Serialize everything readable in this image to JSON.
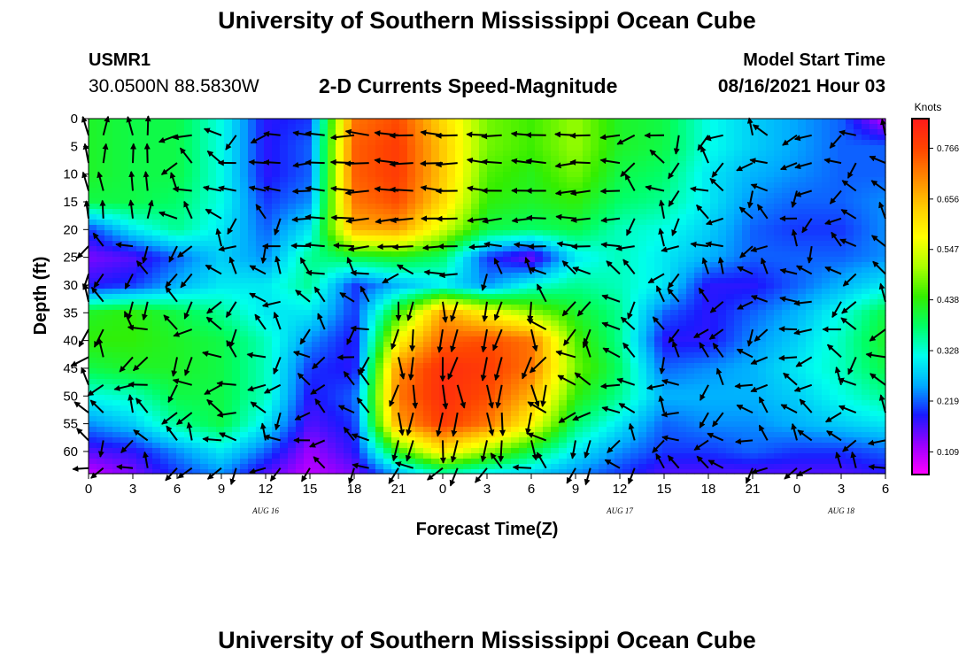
{
  "header": {
    "title": "University of Southern Mississippi Ocean Cube",
    "station_id": "USMR1",
    "station_coords": "30.0500N  88.5830W",
    "subtitle": "2-D Currents Speed-Magnitude",
    "model_start_label": "Model Start Time",
    "model_start_value": "08/16/2021 Hour 03"
  },
  "footer": {
    "title": "University of Southern Mississippi Ocean Cube"
  },
  "chart_data": {
    "type": "heatmap",
    "title": "2-D Currents Speed-Magnitude",
    "xlabel": "Forecast Time(Z)",
    "ylabel": "Depth (ft)",
    "x_tick_labels": [
      "0",
      "3",
      "6",
      "9",
      "12",
      "15",
      "18",
      "21",
      "0",
      "3",
      "6",
      "9",
      "12",
      "15",
      "18",
      "21",
      "0",
      "3",
      "6"
    ],
    "x_date_labels": [
      {
        "label": "AUG 16",
        "at_tick": 4
      },
      {
        "label": "AUG 17",
        "at_tick": 12
      },
      {
        "label": "AUG 18",
        "at_tick": 17
      }
    ],
    "y_ticks": [
      0,
      5,
      10,
      15,
      20,
      25,
      30,
      35,
      40,
      45,
      50,
      55,
      60
    ],
    "ylim": [
      0,
      64
    ],
    "y_reversed": true,
    "colorbar": {
      "unit": "Knots",
      "ticks": [
        0.109,
        0.219,
        0.328,
        0.438,
        0.547,
        0.656,
        0.766
      ],
      "range": [
        0.06,
        0.83
      ],
      "colors": [
        "#ff00ff",
        "#9900ff",
        "#1a1aff",
        "#00aaff",
        "#00ffee",
        "#00ff66",
        "#33ee00",
        "#aaff00",
        "#ffff00",
        "#ffcc00",
        "#ff8800",
        "#ff4400",
        "#ff1a1a"
      ]
    },
    "speed_grid_depths": [
      0,
      5,
      10,
      15,
      20,
      25,
      30,
      35,
      40,
      45,
      50,
      55,
      60,
      64
    ],
    "speed_grid": [
      [
        0.42,
        0.4,
        0.4,
        0.32,
        0.18,
        0.2,
        0.72,
        0.76,
        0.62,
        0.48,
        0.45,
        0.5,
        0.42,
        0.4,
        0.32,
        0.28,
        0.25,
        0.22,
        0.1
      ],
      [
        0.42,
        0.4,
        0.4,
        0.32,
        0.18,
        0.22,
        0.74,
        0.78,
        0.64,
        0.48,
        0.45,
        0.5,
        0.42,
        0.4,
        0.32,
        0.28,
        0.25,
        0.22,
        0.22
      ],
      [
        0.42,
        0.4,
        0.4,
        0.32,
        0.18,
        0.22,
        0.74,
        0.78,
        0.64,
        0.46,
        0.43,
        0.48,
        0.4,
        0.38,
        0.3,
        0.26,
        0.24,
        0.22,
        0.22
      ],
      [
        0.4,
        0.4,
        0.38,
        0.32,
        0.2,
        0.24,
        0.72,
        0.76,
        0.62,
        0.44,
        0.42,
        0.44,
        0.38,
        0.36,
        0.3,
        0.24,
        0.22,
        0.22,
        0.24
      ],
      [
        0.2,
        0.3,
        0.36,
        0.3,
        0.22,
        0.3,
        0.66,
        0.68,
        0.54,
        0.4,
        0.38,
        0.4,
        0.34,
        0.32,
        0.28,
        0.22,
        0.2,
        0.2,
        0.24
      ],
      [
        0.14,
        0.16,
        0.22,
        0.28,
        0.24,
        0.36,
        0.4,
        0.42,
        0.38,
        0.2,
        0.14,
        0.3,
        0.34,
        0.3,
        0.26,
        0.22,
        0.22,
        0.22,
        0.24
      ],
      [
        0.18,
        0.2,
        0.26,
        0.3,
        0.3,
        0.36,
        0.2,
        0.26,
        0.3,
        0.24,
        0.32,
        0.36,
        0.34,
        0.3,
        0.18,
        0.18,
        0.22,
        0.26,
        0.3
      ],
      [
        0.42,
        0.44,
        0.4,
        0.36,
        0.3,
        0.3,
        0.2,
        0.44,
        0.68,
        0.58,
        0.5,
        0.42,
        0.36,
        0.22,
        0.18,
        0.22,
        0.26,
        0.32,
        0.4
      ],
      [
        0.44,
        0.44,
        0.42,
        0.4,
        0.34,
        0.24,
        0.18,
        0.58,
        0.74,
        0.76,
        0.72,
        0.46,
        0.36,
        0.18,
        0.18,
        0.24,
        0.28,
        0.34,
        0.42
      ],
      [
        0.4,
        0.42,
        0.42,
        0.4,
        0.34,
        0.2,
        0.18,
        0.7,
        0.8,
        0.78,
        0.72,
        0.48,
        0.38,
        0.22,
        0.24,
        0.26,
        0.3,
        0.34,
        0.4
      ],
      [
        0.32,
        0.34,
        0.4,
        0.4,
        0.34,
        0.18,
        0.22,
        0.72,
        0.8,
        0.76,
        0.66,
        0.44,
        0.36,
        0.26,
        0.26,
        0.26,
        0.28,
        0.32,
        0.36
      ],
      [
        0.24,
        0.28,
        0.36,
        0.4,
        0.3,
        0.16,
        0.2,
        0.68,
        0.78,
        0.72,
        0.58,
        0.38,
        0.3,
        0.22,
        0.24,
        0.24,
        0.26,
        0.28,
        0.3
      ],
      [
        0.16,
        0.18,
        0.24,
        0.3,
        0.22,
        0.12,
        0.18,
        0.44,
        0.6,
        0.5,
        0.4,
        0.3,
        0.24,
        0.2,
        0.2,
        0.22,
        0.2,
        0.2,
        0.22
      ],
      [
        0.1,
        0.14,
        0.2,
        0.24,
        0.16,
        0.1,
        0.14,
        0.26,
        0.34,
        0.3,
        0.28,
        0.24,
        0.2,
        0.16,
        0.16,
        0.16,
        0.16,
        0.16,
        0.18
      ]
    ],
    "vector_columns_x": [
      0,
      1,
      3,
      4,
      6,
      7,
      9,
      10,
      12,
      13,
      15,
      16,
      18,
      19,
      21,
      22,
      24,
      25,
      27,
      28,
      30,
      31,
      33,
      34,
      36,
      37,
      39,
      40,
      42,
      43,
      45,
      46,
      48,
      49,
      51,
      52,
      54
    ],
    "vector_rows_depth": [
      3,
      8,
      13,
      18,
      23,
      28,
      33,
      38,
      43,
      48,
      53,
      58,
      63
    ]
  }
}
